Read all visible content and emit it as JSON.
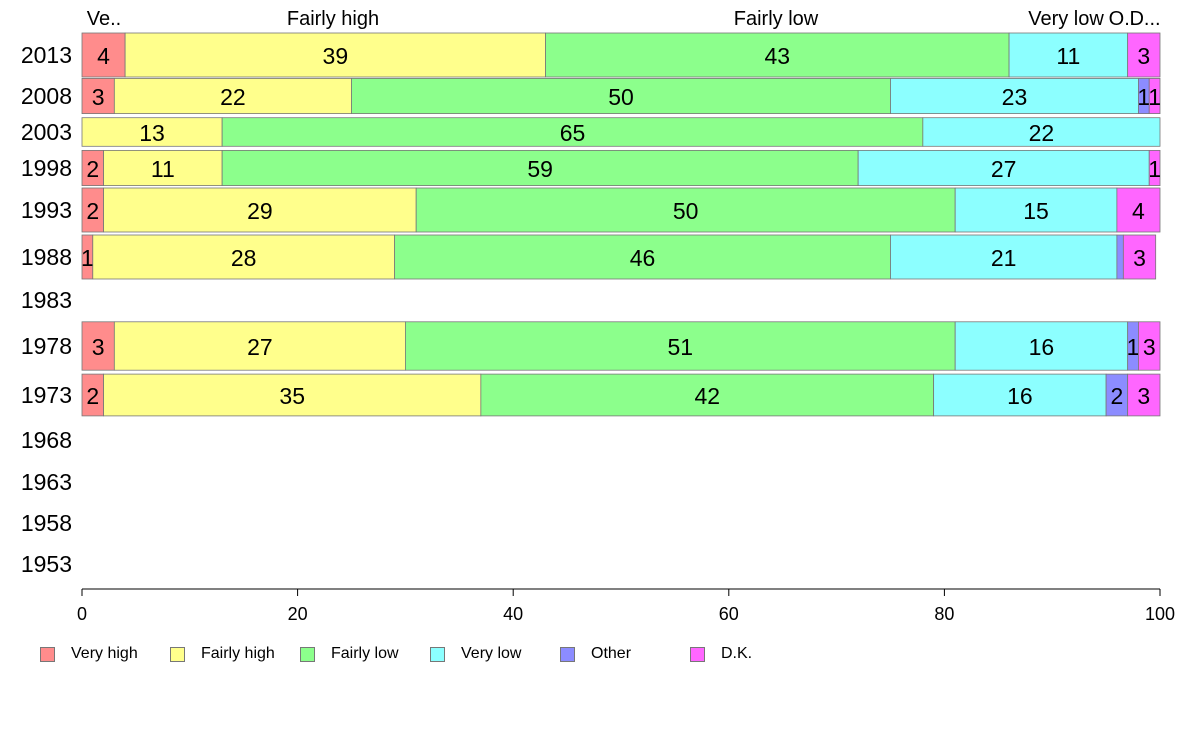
{
  "chart_data": {
    "type": "bar",
    "orientation": "horizontal",
    "stacked": true,
    "categories": [
      "2013",
      "2008",
      "2003",
      "1998",
      "1993",
      "1988",
      "1983",
      "1978",
      "1973",
      "1968",
      "1963",
      "1958",
      "1953"
    ],
    "series": [
      {
        "name": "Very high",
        "color": "#ff8c8c",
        "values": [
          4,
          3,
          0,
          2,
          2,
          1,
          null,
          3,
          2,
          null,
          null,
          null,
          null
        ]
      },
      {
        "name": "Fairly high",
        "color": "#ffff8c",
        "values": [
          39,
          22,
          13,
          11,
          29,
          28,
          null,
          27,
          35,
          null,
          null,
          null,
          null
        ]
      },
      {
        "name": "Fairly low",
        "color": "#8cff8c",
        "values": [
          43,
          50,
          65,
          59,
          50,
          46,
          null,
          51,
          42,
          null,
          null,
          null,
          null
        ]
      },
      {
        "name": "Very low",
        "color": "#8cffff",
        "values": [
          11,
          23,
          22,
          27,
          15,
          21,
          null,
          16,
          16,
          null,
          null,
          null,
          null
        ]
      },
      {
        "name": "Other",
        "color": "#8c8cff",
        "values": [
          0,
          1,
          0,
          0,
          0,
          0.6,
          null,
          1,
          2,
          null,
          null,
          null,
          null
        ]
      },
      {
        "name": "D.K.",
        "color": "#ff66ff",
        "values": [
          3,
          1,
          0,
          1,
          4,
          3,
          null,
          3,
          3,
          null,
          null,
          null,
          null
        ]
      }
    ],
    "data_labels": [
      [
        "4",
        "39",
        "43",
        "11",
        "",
        "3"
      ],
      [
        "3",
        "22",
        "50",
        "23",
        "1",
        "1"
      ],
      [
        "",
        "13",
        "65",
        "22",
        "",
        ""
      ],
      [
        "2",
        "11",
        "59",
        "27",
        "",
        "1"
      ],
      [
        "2",
        "29",
        "50",
        "15",
        "",
        "4"
      ],
      [
        "1",
        "28",
        "46",
        "21",
        "",
        "3"
      ],
      [
        "",
        "",
        "",
        "",
        "",
        ""
      ],
      [
        "3",
        "27",
        "51",
        "16",
        "1",
        "3"
      ],
      [
        "2",
        "35",
        "42",
        "16",
        "2",
        "3"
      ],
      [
        "",
        "",
        "",
        "",
        "",
        ""
      ],
      [
        "",
        "",
        "",
        "",
        "",
        ""
      ],
      [
        "",
        "",
        "",
        "",
        "",
        ""
      ],
      [
        "",
        "",
        "",
        "",
        "",
        ""
      ]
    ],
    "bar_thickness": [
      1.0,
      0.8,
      0.65,
      0.8,
      1.0,
      1.0,
      0,
      1.1,
      0.95,
      0,
      0,
      0,
      0
    ],
    "top_labels": [
      "Ve..",
      "Fairly high",
      "Fairly low",
      "Very low",
      "O..",
      "D..."
    ],
    "xlim": [
      0,
      100
    ],
    "xticks": [
      0,
      20,
      40,
      60,
      80,
      100
    ],
    "grid": false,
    "legend_position": "bottom",
    "title": "",
    "xlabel": "",
    "ylabel": ""
  }
}
